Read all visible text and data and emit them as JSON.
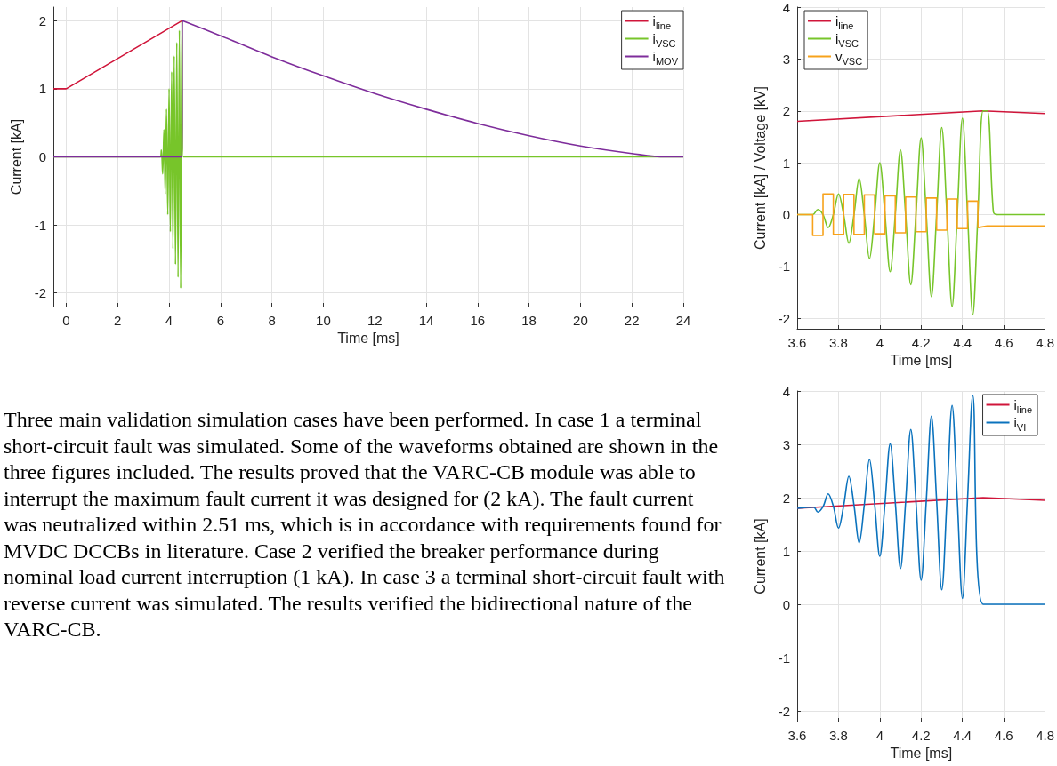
{
  "chart_data": [
    {
      "type": "line",
      "xlabel": "Time [ms]",
      "ylabel": "Current [kA]",
      "xlim": [
        -0.5,
        24
      ],
      "xticks": [
        0,
        2,
        4,
        6,
        8,
        10,
        12,
        14,
        16,
        18,
        20,
        22,
        24
      ],
      "ylim": [
        -2.2,
        2.2
      ],
      "yticks": [
        -2,
        -1,
        0,
        1,
        2
      ],
      "grid": true,
      "legend": "top right",
      "series": [
        {
          "name": "i$_{line}$",
          "color": "#d0153a",
          "x": [
            -0.5,
            0,
            4.5
          ],
          "values": [
            1,
            1,
            2
          ]
        },
        {
          "name": "i$_{VSC}$",
          "color": "#77c52a",
          "x": [
            -0.5,
            3.65,
            3.7,
            3.75,
            3.8,
            3.85,
            3.9,
            3.95,
            4.0,
            4.05,
            4.1,
            4.15,
            4.2,
            4.25,
            4.3,
            4.35,
            4.4,
            4.45,
            4.5,
            4.55,
            24
          ],
          "values": [
            0,
            0,
            0.1,
            -0.25,
            0.4,
            -0.55,
            0.7,
            -0.85,
            1.0,
            -1.1,
            1.25,
            -1.35,
            1.48,
            -1.58,
            1.68,
            -1.77,
            1.86,
            -1.93,
            2.0,
            0,
            0
          ]
        },
        {
          "name": "i$_{MOV}$",
          "color": "#7e2d9b",
          "x": [
            -0.5,
            4.5,
            4.52,
            6,
            8,
            10,
            12,
            14,
            16,
            18,
            20,
            22,
            23.3,
            24
          ],
          "values": [
            0,
            0,
            2,
            1.78,
            1.47,
            1.19,
            0.93,
            0.7,
            0.49,
            0.31,
            0.16,
            0.05,
            0,
            0
          ]
        }
      ]
    },
    {
      "type": "line",
      "xlabel": "Time [ms]",
      "ylabel": "Current [kA] / Voltage [kV]",
      "xlim": [
        3.6,
        4.8
      ],
      "xticks": [
        3.6,
        3.8,
        4,
        4.2,
        4.4,
        4.6,
        4.8
      ],
      "ylim": [
        -2.2,
        4
      ],
      "yticks": [
        -2,
        -1,
        0,
        1,
        2,
        3,
        4
      ],
      "grid": true,
      "legend": "top left",
      "series": [
        {
          "name": "i$_{line}$",
          "color": "#d0153a",
          "x": [
            3.6,
            4.5,
            4.8
          ],
          "values": [
            1.8,
            2,
            1.95
          ]
        },
        {
          "name": "i$_{VSC}$",
          "color": "#77c52a",
          "x": [
            3.6,
            3.675,
            3.7,
            3.725,
            3.75,
            3.775,
            3.8,
            3.825,
            3.85,
            3.875,
            3.9,
            3.925,
            3.95,
            3.975,
            4.0,
            4.025,
            4.05,
            4.075,
            4.1,
            4.125,
            4.15,
            4.175,
            4.2,
            4.225,
            4.25,
            4.275,
            4.3,
            4.325,
            4.35,
            4.375,
            4.4,
            4.425,
            4.45,
            4.475,
            4.5,
            4.52,
            4.55,
            4.57,
            4.8
          ],
          "values": [
            0,
            0,
            0.1,
            0,
            -0.25,
            0,
            0.4,
            0,
            -0.55,
            0,
            0.7,
            0,
            -0.85,
            0,
            1.0,
            0,
            -1.1,
            0,
            1.25,
            0,
            -1.35,
            0,
            1.48,
            0,
            -1.58,
            0,
            1.68,
            0,
            -1.77,
            0,
            1.86,
            0,
            -1.93,
            0,
            2.0,
            2.0,
            0.05,
            0,
            0
          ]
        },
        {
          "name": "v$_{VSC}$",
          "color": "#f7a21b",
          "x": [
            3.6,
            3.675,
            3.675,
            3.725,
            3.725,
            3.775,
            3.775,
            3.825,
            3.825,
            3.875,
            3.875,
            3.925,
            3.925,
            3.975,
            3.975,
            4.025,
            4.025,
            4.075,
            4.075,
            4.125,
            4.125,
            4.175,
            4.175,
            4.225,
            4.225,
            4.275,
            4.275,
            4.325,
            4.325,
            4.375,
            4.375,
            4.425,
            4.425,
            4.475,
            4.475,
            4.52,
            4.8
          ],
          "values": [
            0,
            0,
            -0.4,
            -0.4,
            0.4,
            0.4,
            -0.38,
            -0.38,
            0.39,
            0.39,
            -0.38,
            -0.38,
            0.38,
            0.38,
            -0.37,
            -0.37,
            0.36,
            0.36,
            -0.35,
            -0.35,
            0.34,
            0.34,
            -0.33,
            -0.33,
            0.32,
            0.32,
            -0.3,
            -0.3,
            0.3,
            0.3,
            -0.27,
            -0.27,
            0.26,
            0.26,
            -0.25,
            -0.22,
            -0.22
          ]
        }
      ]
    },
    {
      "type": "line",
      "xlabel": "Time [ms]",
      "ylabel": "Current [kA]",
      "xlim": [
        3.6,
        4.8
      ],
      "xticks": [
        3.6,
        3.8,
        4,
        4.2,
        4.4,
        4.6,
        4.8
      ],
      "ylim": [
        -2.2,
        4
      ],
      "yticks": [
        -2,
        -1,
        0,
        1,
        2,
        3,
        4
      ],
      "grid": true,
      "legend": "top right",
      "series": [
        {
          "name": "i$_{line}$",
          "color": "#d0153a",
          "x": [
            3.6,
            4.5,
            4.8
          ],
          "values": [
            1.8,
            2,
            1.95
          ]
        },
        {
          "name": "i$_{VI}$",
          "color": "#0a72bd",
          "x": [
            3.6,
            3.68,
            3.7,
            3.725,
            3.75,
            3.775,
            3.8,
            3.825,
            3.85,
            3.875,
            3.9,
            3.925,
            3.95,
            3.975,
            4.0,
            4.025,
            4.05,
            4.075,
            4.1,
            4.125,
            4.15,
            4.175,
            4.2,
            4.225,
            4.25,
            4.275,
            4.3,
            4.325,
            4.35,
            4.375,
            4.4,
            4.425,
            4.45,
            4.5,
            4.8
          ],
          "values": [
            1.8,
            1.82,
            1.73,
            1.83,
            2.07,
            1.84,
            1.43,
            1.85,
            2.4,
            1.86,
            1.15,
            1.87,
            2.72,
            1.88,
            0.9,
            1.89,
            3.01,
            1.91,
            0.67,
            1.92,
            3.28,
            1.93,
            0.45,
            1.94,
            3.53,
            1.95,
            0.27,
            1.96,
            3.73,
            1.97,
            0.11,
            1.98,
            3.92,
            0,
            0
          ]
        }
      ]
    },
    {
      "type": "other",
      "annotations": [
        "Three main validation simulation cases have been performed. In case 1 a terminal short-circuit fault was simulated. Some of the waveforms obtained are shown in the three figures included. The results proved that the VARC-CB module was able to interrupt the maximum fault current it was designed for (2 kA). The fault current was neutralized within 2.51 ms, which is in accordance with requirements found for MVDC DCCBs in literature. Case 2 verified the breaker performance during nominal load current interruption (1 kA). In case 3 a terminal short-circuit fault with reverse current was simulated. The results verified the bidirectional nature of the VARC-CB."
      ]
    }
  ]
}
